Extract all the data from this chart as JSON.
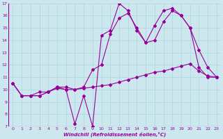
{
  "xlabel": "Windchill (Refroidissement éolien,°C)",
  "bg_color": "#cce8ee",
  "line_color": "#990099",
  "grid_color": "#aad8dd",
  "xlim": [
    -0.5,
    23.5
  ],
  "ylim": [
    7,
    17
  ],
  "yticks": [
    7,
    8,
    9,
    10,
    11,
    12,
    13,
    14,
    15,
    16,
    17
  ],
  "xticks": [
    0,
    1,
    2,
    3,
    4,
    5,
    6,
    7,
    8,
    9,
    10,
    11,
    12,
    13,
    14,
    15,
    16,
    17,
    18,
    19,
    20,
    21,
    22,
    23
  ],
  "series": [
    [
      10.5,
      9.5,
      9.5,
      9.5,
      9.8,
      10.2,
      10.0,
      7.2,
      9.5,
      7.0,
      14.4,
      14.8,
      17.0,
      16.4,
      14.8,
      13.8,
      15.2,
      16.4,
      16.6,
      16.0,
      15.0,
      11.8,
      11.0,
      11.0
    ],
    [
      10.5,
      9.5,
      9.5,
      9.8,
      9.8,
      10.2,
      10.2,
      10.0,
      10.2,
      11.6,
      12.0,
      14.5,
      15.8,
      16.2,
      15.0,
      13.8,
      14.0,
      15.5,
      16.4,
      16.0,
      15.0,
      13.2,
      11.8,
      11.0
    ],
    [
      10.5,
      9.5,
      9.5,
      9.5,
      9.8,
      10.1,
      10.0,
      10.0,
      10.1,
      10.2,
      10.3,
      10.4,
      10.6,
      10.8,
      11.0,
      11.2,
      11.4,
      11.5,
      11.7,
      11.9,
      12.1,
      11.5,
      11.1,
      11.0
    ]
  ],
  "marker": "D",
  "markersize": 2.0,
  "linewidth": 0.8
}
